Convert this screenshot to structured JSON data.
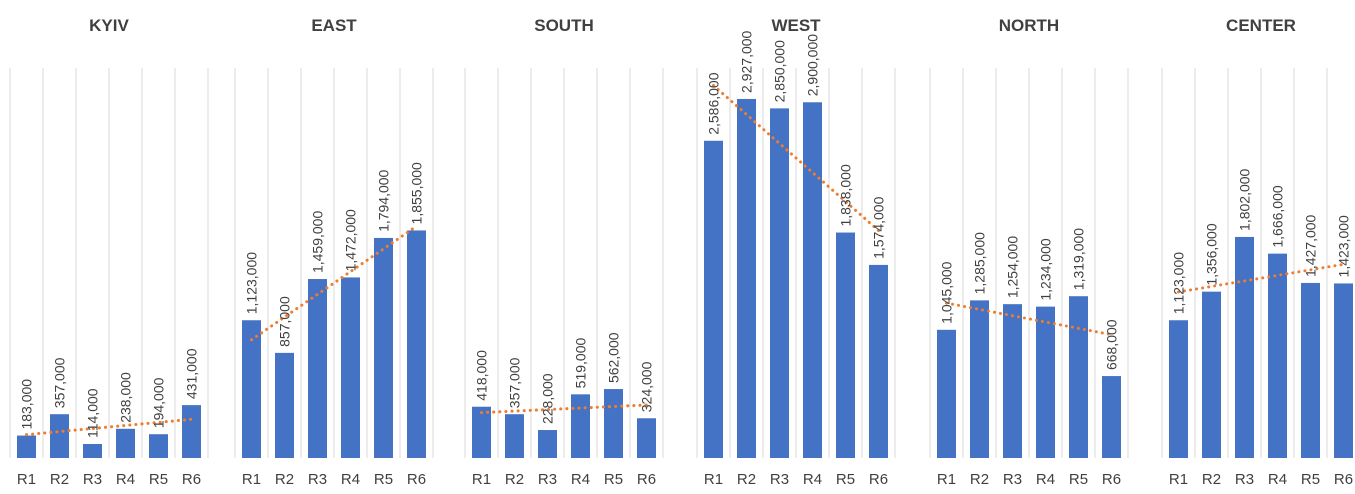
{
  "colors": {
    "bar": "#4472C4",
    "trendline": "#ED7D31",
    "grid": "#D9D9D9",
    "text": "#404040"
  },
  "chart_data": [
    {
      "type": "bar",
      "title": "KYIV",
      "categories": [
        "R1",
        "R2",
        "R3",
        "R4",
        "R5",
        "R6"
      ],
      "values": [
        183000,
        357000,
        114000,
        238000,
        194000,
        431000
      ],
      "data_labels": [
        "183,000",
        "357,000",
        "114,000",
        "238,000",
        "194,000",
        "431,000"
      ],
      "trendline": "linear, dotted",
      "ylim": [
        0,
        3000000
      ],
      "grid": "vertical lines"
    },
    {
      "type": "bar",
      "title": "EAST",
      "categories": [
        "R1",
        "R2",
        "R3",
        "R4",
        "R5",
        "R6"
      ],
      "values": [
        1123000,
        857000,
        1459000,
        1472000,
        1794000,
        1855000
      ],
      "data_labels": [
        "1,123,000",
        "857,000",
        "1,459,000",
        "1,472,000",
        "1,794,000",
        "1,855,000"
      ],
      "trendline": "linear, dotted",
      "ylim": [
        0,
        3000000
      ],
      "grid": "vertical lines"
    },
    {
      "type": "bar",
      "title": "SOUTH",
      "categories": [
        "R1",
        "R2",
        "R3",
        "R4",
        "R5",
        "R6"
      ],
      "values": [
        418000,
        357000,
        228000,
        519000,
        562000,
        324000
      ],
      "data_labels": [
        "418,000",
        "357,000",
        "228,000",
        "519,000",
        "562,000",
        "324,000"
      ],
      "trendline": "linear, dotted",
      "ylim": [
        0,
        3000000
      ],
      "grid": "vertical lines"
    },
    {
      "type": "bar",
      "title": "WEST",
      "categories": [
        "R1",
        "R2",
        "R3",
        "R4",
        "R5",
        "R6"
      ],
      "values": [
        2586000,
        2927000,
        2850000,
        2900000,
        1838000,
        1574000
      ],
      "data_labels": [
        "2,586,000",
        "2,927,000",
        "2,850,000",
        "2,900,000",
        "1,838,000",
        "1,574,000"
      ],
      "trendline": "linear, dotted",
      "ylim": [
        0,
        3000000
      ],
      "grid": "vertical lines"
    },
    {
      "type": "bar",
      "title": "NORTH",
      "categories": [
        "R1",
        "R2",
        "R3",
        "R4",
        "R5",
        "R6"
      ],
      "values": [
        1045000,
        1285000,
        1254000,
        1234000,
        1319000,
        668000
      ],
      "data_labels": [
        "1,045,000",
        "1,285,000",
        "1,254,000",
        "1,234,000",
        "1,319,000",
        "668,000"
      ],
      "trendline": "linear, dotted",
      "ylim": [
        0,
        3000000
      ],
      "grid": "vertical lines"
    },
    {
      "type": "bar",
      "title": "CENTER",
      "categories": [
        "R1",
        "R2",
        "R3",
        "R4",
        "R5",
        "R6"
      ],
      "values": [
        1123000,
        1356000,
        1802000,
        1666000,
        1427000,
        1423000
      ],
      "data_labels": [
        "1,123,000",
        "1,356,000",
        "1,802,000",
        "1,666,000",
        "1,427,000",
        "1,423,000"
      ],
      "trendline": "linear, dotted",
      "ylim": [
        0,
        3000000
      ],
      "grid": "vertical lines"
    }
  ]
}
